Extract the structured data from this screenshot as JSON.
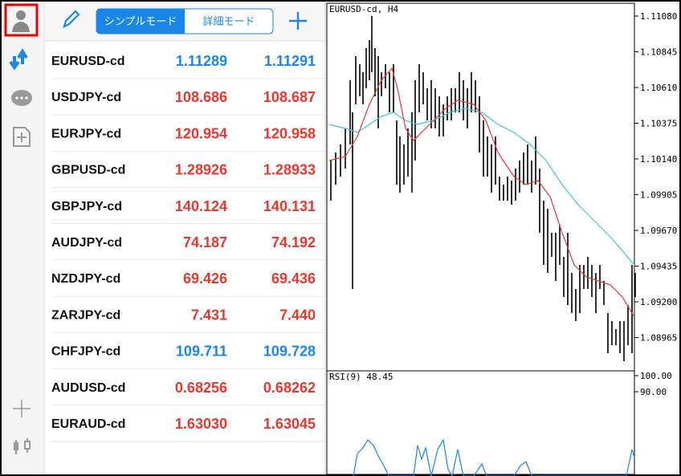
{
  "toolbar": {
    "tabs": [
      "シンプルモード",
      "詳細モード"
    ]
  },
  "quotes": [
    {
      "symbol": "EURUSD-cd",
      "bid": "1.11289",
      "ask": "1.11291",
      "color": "#1a86e8"
    },
    {
      "symbol": "USDJPY-cd",
      "bid": "108.686",
      "ask": "108.687",
      "color": "#e8382e"
    },
    {
      "symbol": "EURJPY-cd",
      "bid": "120.954",
      "ask": "120.958",
      "color": "#e8382e"
    },
    {
      "symbol": "GBPUSD-cd",
      "bid": "1.28926",
      "ask": "1.28933",
      "color": "#e8382e"
    },
    {
      "symbol": "GBPJPY-cd",
      "bid": "140.124",
      "ask": "140.131",
      "color": "#e8382e"
    },
    {
      "symbol": "AUDJPY-cd",
      "bid": "74.187",
      "ask": "74.192",
      "color": "#e8382e"
    },
    {
      "symbol": "NZDJPY-cd",
      "bid": "69.426",
      "ask": "69.436",
      "color": "#e8382e"
    },
    {
      "symbol": "ZARJPY-cd",
      "bid": "7.431",
      "ask": "7.440",
      "color": "#e8382e"
    },
    {
      "symbol": "CHFJPY-cd",
      "bid": "109.711",
      "ask": "109.728",
      "color": "#1a86e8"
    },
    {
      "symbol": "AUDUSD-cd",
      "bid": "0.68256",
      "ask": "0.68262",
      "color": "#e8382e"
    },
    {
      "symbol": "EURAUD-cd",
      "bid": "1.63030",
      "ask": "1.63045",
      "color": "#e8382e"
    }
  ],
  "chart": {
    "title": "EURUSD-cd, H4",
    "price_labels": [
      "1.11080",
      "1.10845",
      "1.10610",
      "1.10375",
      "1.10140",
      "1.09905",
      "1.09670",
      "1.09435",
      "1.09200",
      "1.08965"
    ],
    "indicator": {
      "label": "RSI(9) 48.45",
      "levels": [
        "100.00",
        "90.00"
      ]
    }
  }
}
